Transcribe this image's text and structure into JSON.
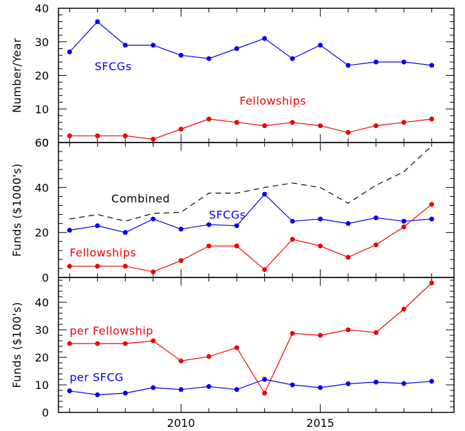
{
  "chart_data": {
    "type": "line",
    "x_ticks": [
      2010,
      2015
    ],
    "x_tick_labels": [
      "2010",
      "2015"
    ],
    "xlim": [
      2005.6,
      2019.8
    ],
    "panels": [
      {
        "id": "number",
        "ylabel": "Number/Year",
        "ylim": [
          0,
          40
        ],
        "y_ticks": [
          0,
          10,
          20,
          30,
          40
        ],
        "y_tick_labels": [
          "0",
          "10",
          "20",
          "30",
          "40"
        ],
        "series": [
          {
            "name": "SFCGs",
            "color": "#0000ee",
            "style": "solid-markers",
            "x": [
              2006,
              2007,
              2008,
              2009,
              2010,
              2011,
              2012,
              2013,
              2014,
              2015,
              2016,
              2017,
              2018,
              2019
            ],
            "values": [
              27,
              36,
              29,
              29,
              26,
              25,
              28,
              31,
              25,
              29,
              23,
              24,
              24,
              23
            ]
          },
          {
            "name": "Fellowships",
            "color": "#ee0000",
            "style": "solid-markers",
            "x": [
              2006,
              2007,
              2008,
              2009,
              2010,
              2011,
              2012,
              2013,
              2014,
              2015,
              2016,
              2017,
              2018,
              2019
            ],
            "values": [
              2,
              2,
              2,
              1,
              4,
              7,
              6,
              5,
              6,
              5,
              3,
              5,
              6,
              7
            ]
          }
        ],
        "labels": [
          {
            "text": "SFCGs",
            "x": 2006.9,
            "y": 21.5,
            "color": "#0000ee"
          },
          {
            "text": "Fellowships",
            "x": 2012.1,
            "y": 11.3,
            "color": "#ee0000"
          }
        ]
      },
      {
        "id": "funds1000",
        "ylabel": "Funds ($1000's)",
        "ylim": [
          0,
          60
        ],
        "y_ticks": [
          0,
          20,
          40,
          60
        ],
        "y_tick_labels": [
          "0",
          "20",
          "40",
          "60"
        ],
        "series": [
          {
            "name": "Combined",
            "color": "#000000",
            "style": "dashed",
            "x": [
              2006,
              2007,
              2008,
              2009,
              2010,
              2011,
              2012,
              2013,
              2014,
              2015,
              2016,
              2017,
              2018,
              2019
            ],
            "values": [
              26,
              28,
              25,
              28.5,
              29,
              37.5,
              37.5,
              40,
              42,
              40,
              33,
              41,
              47,
              58.5
            ]
          },
          {
            "name": "SFCGs",
            "color": "#0000ee",
            "style": "solid-markers",
            "x": [
              2006,
              2007,
              2008,
              2009,
              2010,
              2011,
              2012,
              2013,
              2014,
              2015,
              2016,
              2017,
              2018,
              2019
            ],
            "values": [
              21,
              23,
              20,
              26,
              21.5,
              23.5,
              23,
              37,
              25,
              26,
              24,
              26.5,
              25,
              26
            ]
          },
          {
            "name": "Fellowships",
            "color": "#ee0000",
            "style": "solid-markers",
            "x": [
              2006,
              2007,
              2008,
              2009,
              2010,
              2011,
              2012,
              2013,
              2014,
              2015,
              2016,
              2017,
              2018,
              2019
            ],
            "values": [
              5,
              5,
              5,
              2.5,
              7.5,
              14,
              14,
              3.5,
              17,
              14,
              9,
              14.5,
              22.5,
              32.5
            ]
          }
        ],
        "labels": [
          {
            "text": "Combined",
            "x": 2007.5,
            "y": 33.3,
            "color": "#000000"
          },
          {
            "text": "SFCGs",
            "x": 2011.0,
            "y": 26.2,
            "color": "#0000ee"
          },
          {
            "text": "Fellowships",
            "x": 2006.0,
            "y": 9.3,
            "color": "#ee0000"
          }
        ]
      },
      {
        "id": "funds100",
        "ylabel": "Funds ($100's)",
        "ylim": [
          0,
          49
        ],
        "y_ticks": [
          0,
          10,
          20,
          30,
          40
        ],
        "y_tick_labels": [
          "0",
          "10",
          "20",
          "30",
          "40"
        ],
        "series": [
          {
            "name": "per Fellowship",
            "color": "#ee0000",
            "style": "solid-markers",
            "x": [
              2006,
              2007,
              2008,
              2009,
              2010,
              2011,
              2012,
              2013,
              2014,
              2015,
              2016,
              2017,
              2018,
              2019
            ],
            "values": [
              25,
              25,
              25,
              26,
              18.7,
              20.3,
              23.5,
              7,
              28.7,
              28,
              30,
              29,
              37.5,
              47
            ]
          },
          {
            "name": "per SFCG",
            "color": "#0000ee",
            "style": "solid-markers",
            "x": [
              2006,
              2007,
              2008,
              2009,
              2010,
              2011,
              2012,
              2013,
              2014,
              2015,
              2016,
              2017,
              2018,
              2019
            ],
            "values": [
              7.8,
              6.4,
              7,
              9,
              8.3,
              9.4,
              8.3,
              12,
              10,
              9,
              10.4,
              11,
              10.5,
              11.3
            ]
          }
        ],
        "labels": [
          {
            "text": "per Fellowship",
            "x": 2006.0,
            "y": 28.3,
            "color": "#ee0000"
          },
          {
            "text": "per SFCG",
            "x": 2006.0,
            "y": 11.4,
            "color": "#0000ee"
          }
        ]
      }
    ]
  }
}
